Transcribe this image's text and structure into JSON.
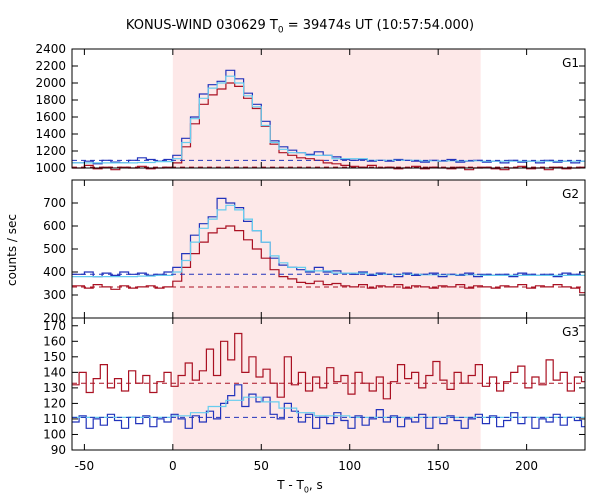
{
  "chart_data": {
    "type": "line",
    "title_parts": [
      "KONUS-WIND 030629 T",
      "0",
      " = 39474s UT (10:57:54.000)"
    ],
    "xlabel_parts": [
      "T - T",
      "0",
      ", s"
    ],
    "ylabel": "counts / sec",
    "xlim": [
      -57,
      233
    ],
    "xticks": [
      -50,
      0,
      50,
      100,
      150,
      200
    ],
    "shaded_interval": [
      0,
      174
    ],
    "colors": {
      "shade": "#fde8e8",
      "blue": "#2233bb",
      "red": "#aa1122",
      "cyan": "#66ccee"
    },
    "panels": [
      {
        "label": "G1",
        "ylim": [
          1000,
          2400
        ],
        "yticks": [
          1000,
          1200,
          1400,
          1600,
          1800,
          2000,
          2200,
          2400
        ],
        "baselines": {
          "blue": 1090,
          "red": 1010
        },
        "series": [
          {
            "name": "",
            "color": "blue",
            "x": [
              -57,
              -50,
              -45,
              -40,
              -35,
              -30,
              -25,
              -20,
              -15,
              -10,
              -5,
              0,
              5,
              10,
              15,
              20,
              25,
              30,
              35,
              40,
              45,
              50,
              55,
              60,
              65,
              70,
              75,
              80,
              85,
              90,
              95,
              100,
              105,
              110,
              115,
              120,
              125,
              130,
              135,
              140,
              145,
              150,
              155,
              160,
              165,
              170,
              175,
              180,
              185,
              190,
              195,
              200,
              205,
              210,
              215,
              220,
              225,
              230
            ],
            "y": [
              1060,
              1080,
              1050,
              1090,
              1070,
              1060,
              1090,
              1120,
              1100,
              1080,
              1100,
              1150,
              1350,
              1600,
              1870,
              1980,
              2020,
              2150,
              2050,
              1880,
              1750,
              1550,
              1320,
              1250,
              1210,
              1180,
              1160,
              1190,
              1150,
              1130,
              1100,
              1090,
              1100,
              1080,
              1090,
              1080,
              1100,
              1090,
              1080,
              1070,
              1090,
              1080,
              1100,
              1070,
              1080,
              1090,
              1070,
              1080,
              1060,
              1090,
              1070,
              1080,
              1060,
              1090,
              1070,
              1080,
              1060,
              1080
            ]
          },
          {
            "name": "",
            "color": "red",
            "x": [
              -57,
              -50,
              -45,
              -40,
              -35,
              -30,
              -25,
              -20,
              -15,
              -10,
              -5,
              0,
              5,
              10,
              15,
              20,
              25,
              30,
              35,
              40,
              45,
              50,
              55,
              60,
              65,
              70,
              75,
              80,
              85,
              90,
              95,
              100,
              105,
              110,
              115,
              120,
              125,
              130,
              135,
              140,
              145,
              150,
              155,
              160,
              165,
              170,
              175,
              180,
              185,
              190,
              195,
              200,
              205,
              210,
              215,
              220,
              225,
              230
            ],
            "y": [
              1000,
              1030,
              990,
              1010,
              980,
              1010,
              1000,
              1020,
              990,
              1000,
              1010,
              1060,
              1250,
              1520,
              1750,
              1860,
              1930,
              2000,
              1960,
              1820,
              1700,
              1490,
              1280,
              1180,
              1150,
              1120,
              1110,
              1090,
              1060,
              1050,
              1030,
              1020,
              1010,
              1030,
              1000,
              1010,
              990,
              1000,
              1020,
              990,
              1010,
              1000,
              990,
              1010,
              980,
              1000,
              1010,
              990,
              980,
              1000,
              1020,
              990,
              1000,
              980,
              1010,
              990,
              1000,
              1010
            ]
          },
          {
            "name": "",
            "color": "cyan",
            "x": [
              -57,
              -20,
              -10,
              0,
              5,
              10,
              15,
              20,
              25,
              30,
              35,
              40,
              45,
              50,
              55,
              60,
              65,
              75,
              90,
              110,
              140,
              174,
              233
            ],
            "y": [
              1060,
              1065,
              1075,
              1110,
              1300,
              1580,
              1820,
              1940,
              2000,
              2080,
              2000,
              1850,
              1720,
              1500,
              1300,
              1220,
              1180,
              1150,
              1110,
              1090,
              1085,
              1080,
              1080
            ]
          }
        ]
      },
      {
        "label": "G2",
        "ylim": [
          200,
          800
        ],
        "yticks": [
          200,
          300,
          400,
          500,
          600,
          700
        ],
        "baselines": {
          "blue": 390,
          "red": 335
        },
        "series": [
          {
            "name": "",
            "color": "blue",
            "x": [
              -57,
              -50,
              -45,
              -40,
              -35,
              -30,
              -25,
              -20,
              -15,
              -10,
              -5,
              0,
              5,
              10,
              15,
              20,
              25,
              30,
              35,
              40,
              45,
              50,
              55,
              60,
              65,
              70,
              75,
              80,
              85,
              90,
              95,
              100,
              105,
              110,
              115,
              120,
              125,
              130,
              135,
              140,
              145,
              150,
              155,
              160,
              165,
              170,
              175,
              180,
              185,
              190,
              195,
              200,
              205,
              210,
              215,
              220,
              225,
              230
            ],
            "y": [
              390,
              400,
              380,
              395,
              385,
              400,
              390,
              395,
              385,
              390,
              400,
              420,
              480,
              560,
              610,
              640,
              720,
              700,
              680,
              620,
              580,
              530,
              460,
              430,
              420,
              410,
              400,
              420,
              400,
              405,
              395,
              390,
              400,
              385,
              395,
              390,
              380,
              395,
              385,
              390,
              395,
              380,
              390,
              385,
              395,
              380,
              390,
              385,
              390,
              380,
              395,
              390,
              385,
              390,
              380,
              395,
              390,
              400
            ]
          },
          {
            "name": "",
            "color": "red",
            "x": [
              -57,
              -50,
              -45,
              -40,
              -35,
              -30,
              -25,
              -20,
              -15,
              -10,
              -5,
              0,
              5,
              10,
              15,
              20,
              25,
              30,
              35,
              40,
              45,
              50,
              55,
              60,
              65,
              70,
              75,
              80,
              85,
              90,
              95,
              100,
              105,
              110,
              115,
              120,
              125,
              130,
              135,
              140,
              145,
              150,
              155,
              160,
              165,
              170,
              175,
              180,
              185,
              190,
              195,
              200,
              205,
              210,
              215,
              220,
              225,
              230
            ],
            "y": [
              340,
              330,
              345,
              335,
              325,
              340,
              330,
              335,
              340,
              330,
              335,
              360,
              420,
              480,
              530,
              570,
              590,
              600,
              580,
              540,
              500,
              460,
              410,
              380,
              370,
              355,
              350,
              360,
              345,
              350,
              340,
              335,
              345,
              330,
              340,
              335,
              345,
              330,
              340,
              335,
              330,
              340,
              335,
              345,
              330,
              340,
              335,
              330,
              340,
              335,
              345,
              330,
              340,
              335,
              345,
              335,
              330,
              310
            ]
          },
          {
            "name": "",
            "color": "cyan",
            "x": [
              -57,
              -20,
              -10,
              0,
              5,
              10,
              15,
              20,
              25,
              30,
              35,
              40,
              45,
              50,
              55,
              60,
              65,
              75,
              90,
              110,
              140,
              174,
              233
            ],
            "y": [
              380,
              382,
              385,
              400,
              450,
              530,
              590,
              630,
              670,
              690,
              670,
              630,
              580,
              530,
              470,
              440,
              420,
              405,
              395,
              390,
              388,
              385,
              385
            ]
          }
        ]
      },
      {
        "label": "G3",
        "ylim": [
          90,
          175
        ],
        "yticks": [
          90,
          100,
          110,
          120,
          130,
          140,
          150,
          160,
          170
        ],
        "baselines": {
          "blue": 111,
          "red": 133
        },
        "series": [
          {
            "name": "",
            "color": "blue",
            "x": [
              -57,
              -53,
              -49,
              -45,
              -41,
              -37,
              -33,
              -29,
              -25,
              -21,
              -17,
              -13,
              -9,
              -5,
              -1,
              3,
              7,
              11,
              15,
              19,
              23,
              27,
              31,
              35,
              39,
              43,
              47,
              51,
              55,
              59,
              63,
              67,
              71,
              75,
              79,
              83,
              87,
              91,
              95,
              99,
              103,
              107,
              111,
              115,
              119,
              123,
              127,
              131,
              135,
              139,
              143,
              147,
              151,
              155,
              159,
              163,
              167,
              171,
              175,
              179,
              183,
              187,
              191,
              195,
              199,
              203,
              207,
              211,
              215,
              219,
              223,
              227,
              231
            ],
            "y": [
              108,
              112,
              104,
              110,
              106,
              113,
              109,
              104,
              111,
              107,
              112,
              105,
              110,
              108,
              113,
              110,
              104,
              112,
              108,
              115,
              110,
              120,
              125,
              132,
              118,
              126,
              121,
              124,
              113,
              110,
              120,
              115,
              108,
              113,
              104,
              111,
              107,
              114,
              109,
              104,
              112,
              106,
              110,
              116,
              108,
              112,
              105,
              110,
              108,
              113,
              104,
              111,
              107,
              112,
              109,
              104,
              110,
              113,
              107,
              112,
              105,
              109,
              114,
              107,
              111,
              104,
              110,
              108,
              113,
              106,
              111,
              109,
              105
            ]
          },
          {
            "name": "",
            "color": "red",
            "x": [
              -57,
              -53,
              -49,
              -45,
              -41,
              -37,
              -33,
              -29,
              -25,
              -21,
              -17,
              -13,
              -9,
              -5,
              -1,
              3,
              7,
              11,
              15,
              19,
              23,
              27,
              31,
              35,
              39,
              43,
              47,
              51,
              55,
              59,
              63,
              67,
              71,
              75,
              79,
              83,
              87,
              91,
              95,
              99,
              103,
              107,
              111,
              115,
              119,
              123,
              127,
              131,
              135,
              139,
              143,
              147,
              151,
              155,
              159,
              163,
              167,
              171,
              175,
              179,
              183,
              187,
              191,
              195,
              199,
              203,
              207,
              211,
              215,
              219,
              223,
              227,
              231
            ],
            "y": [
              132,
              140,
              127,
              136,
              145,
              130,
              136,
              128,
              141,
              133,
              138,
              127,
              134,
              140,
              131,
              138,
              146,
              135,
              141,
              155,
              138,
              160,
              148,
              165,
              140,
              150,
              137,
              142,
              133,
              124,
              150,
              132,
              140,
              128,
              137,
              130,
              143,
              134,
              138,
              126,
              140,
              133,
              128,
              137,
              123,
              134,
              145,
              136,
              140,
              130,
              138,
              147,
              135,
              129,
              140,
              133,
              138,
              145,
              131,
              137,
              128,
              134,
              140,
              144,
              130,
              137,
              132,
              148,
              135,
              140,
              128,
              137,
              134
            ]
          },
          {
            "name": "",
            "color": "cyan",
            "x": [
              -57,
              -10,
              0,
              10,
              20,
              30,
              40,
              50,
              60,
              70,
              80,
              100,
              174,
              233
            ],
            "y": [
              111,
              111,
              112,
              114,
              118,
              122,
              124,
              121,
              117,
              114,
              112,
              111,
              111,
              111
            ]
          }
        ]
      }
    ]
  }
}
